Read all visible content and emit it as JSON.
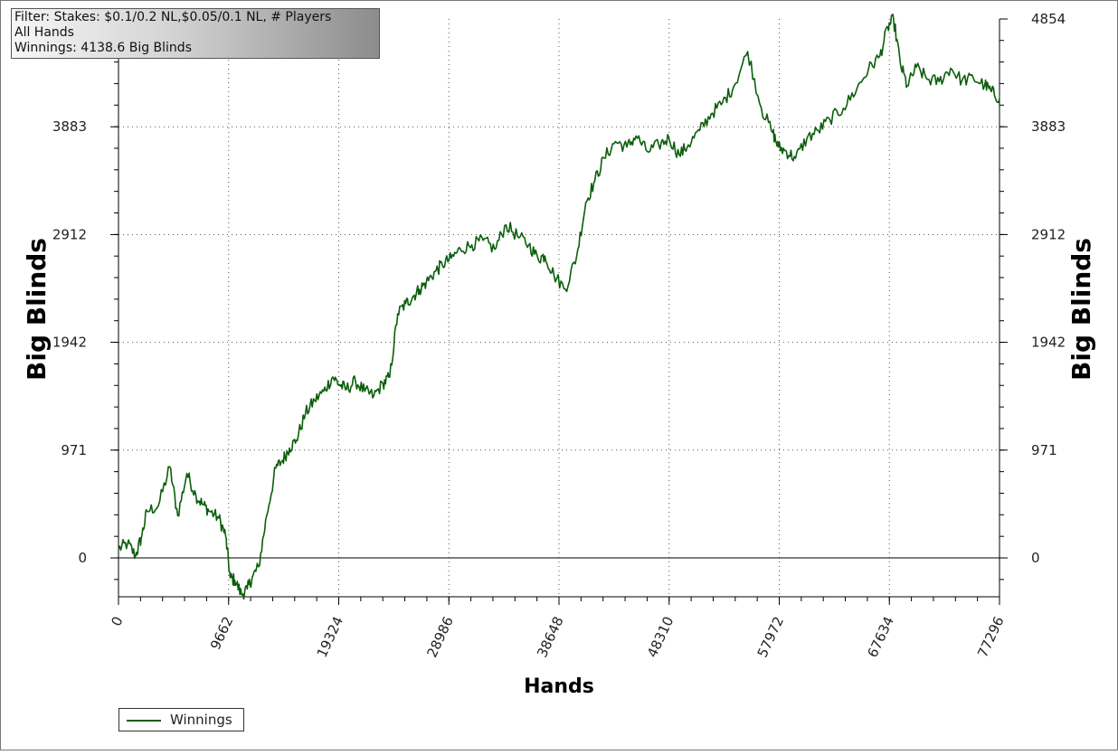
{
  "filter": {
    "line1": "Filter: Stakes: $0.1/0.2 NL,$0.05/0.1 NL, # Players",
    "line2": "All Hands",
    "line3": "Winnings: 4138.6 Big Blinds"
  },
  "legend": {
    "label": "Winnings"
  },
  "colors": {
    "series": "#0b5e0b",
    "grid": "#555555",
    "axis": "#000000"
  },
  "chart_data": {
    "type": "line",
    "xlabel": "Hands",
    "ylabel": "Big Blinds",
    "xlim": [
      0,
      77296
    ],
    "ylim": [
      -350,
      4854
    ],
    "x_ticks": [
      "0",
      "9662",
      "19324",
      "28986",
      "38648",
      "48310",
      "57972",
      "67634",
      "77296"
    ],
    "y_ticks": [
      "0",
      "971",
      "1942",
      "2912",
      "3883",
      "4854"
    ],
    "grid": true,
    "legend_position": "bottom-left",
    "series": [
      {
        "name": "Winnings",
        "x": [
          0,
          800,
          1500,
          2000,
          2500,
          3500,
          4500,
          5200,
          6000,
          6800,
          7400,
          8000,
          8800,
          9400,
          9800,
          10200,
          10800,
          11300,
          11800,
          12300,
          13000,
          13800,
          14400,
          15000,
          15600,
          16400,
          17200,
          18000,
          18800,
          19400,
          20000,
          20800,
          21600,
          22400,
          23200,
          23800,
          24500,
          25200,
          25800,
          26400,
          27000,
          27800,
          28400,
          29200,
          30000,
          31000,
          32000,
          33000,
          34000,
          35000,
          36000,
          36800,
          37400,
          38200,
          39200,
          40200,
          41000,
          41800,
          42600,
          43600,
          44600,
          45400,
          46400,
          47400,
          48300,
          49200,
          50000,
          51000,
          52000,
          53000,
          54000,
          55200,
          56400,
          57400,
          57900,
          58600,
          59400,
          60400,
          61400,
          62400,
          63600,
          64800,
          65800,
          66800,
          67500,
          68000,
          68600,
          69200,
          70000,
          71000,
          72000,
          73000,
          74000,
          75000,
          76000,
          76600,
          77296
        ],
        "y": [
          80,
          130,
          20,
          180,
          420,
          470,
          820,
          380,
          760,
          560,
          480,
          420,
          360,
          200,
          -180,
          -200,
          -330,
          -280,
          -160,
          -80,
          380,
          810,
          880,
          990,
          1060,
          1300,
          1420,
          1500,
          1630,
          1560,
          1520,
          1590,
          1500,
          1460,
          1570,
          1630,
          2200,
          2290,
          2350,
          2420,
          2480,
          2580,
          2640,
          2700,
          2780,
          2820,
          2860,
          2780,
          3000,
          2900,
          2820,
          2700,
          2720,
          2550,
          2420,
          2720,
          3200,
          3400,
          3600,
          3750,
          3700,
          3800,
          3660,
          3720,
          3780,
          3630,
          3720,
          3850,
          4000,
          4100,
          4250,
          4560,
          4050,
          3830,
          3700,
          3660,
          3600,
          3780,
          3850,
          3950,
          4050,
          4230,
          4400,
          4520,
          4780,
          4854,
          4450,
          4250,
          4420,
          4310,
          4290,
          4410,
          4300,
          4320,
          4260,
          4200,
          4138.6
        ]
      }
    ]
  }
}
